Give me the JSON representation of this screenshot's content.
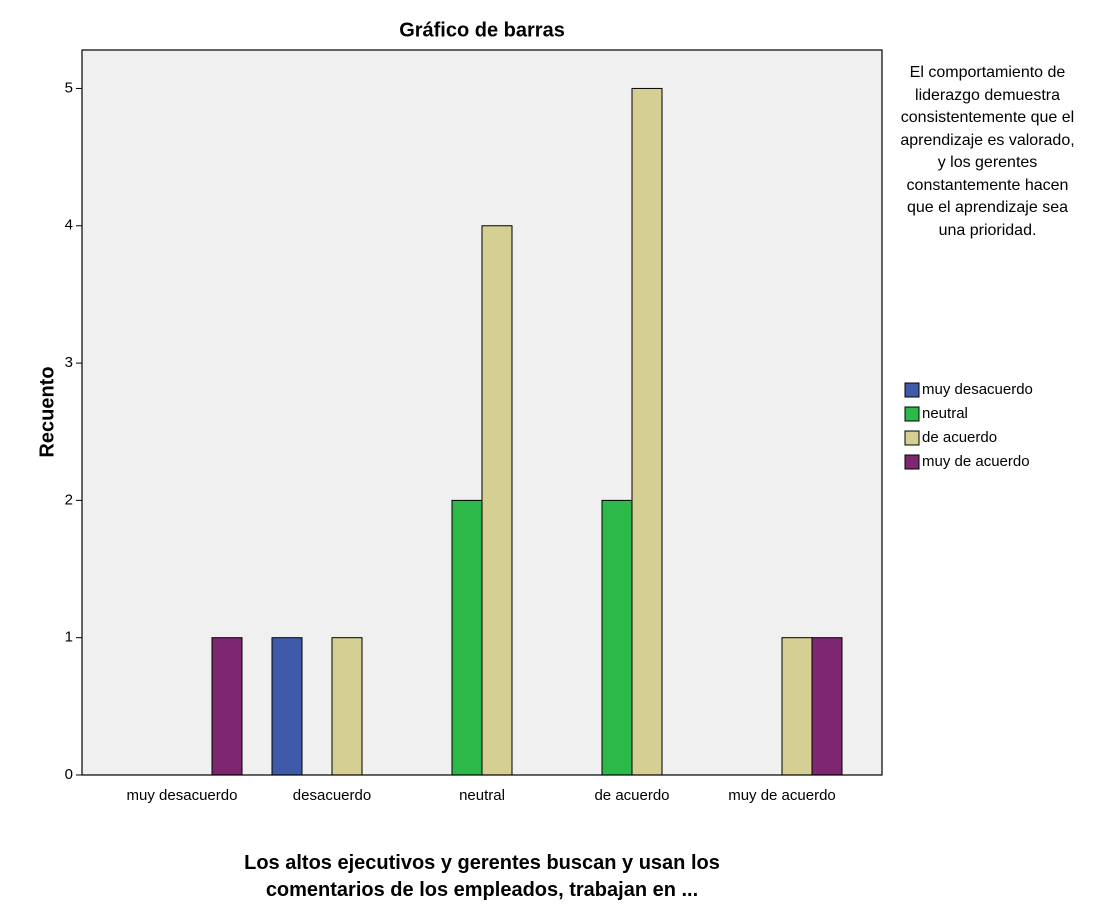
{
  "chart_data": {
    "type": "bar",
    "title": "Gráfico de barras",
    "x_label": "Los altos ejecutivos y gerentes buscan y usan los comentarios de los empleados, trabajan en ...",
    "y_label": "Recuento",
    "legend_title": "El comportamiento de liderazgo demuestra consistentemente que el aprendizaje es valorado, y los gerentes constantemente hacen que el aprendizaje sea una prioridad.",
    "categories": [
      "muy desacuerdo",
      "desacuerdo",
      "neutral",
      "de acuerdo",
      "muy de acuerdo"
    ],
    "series": [
      {
        "name": "muy desacuerdo",
        "color": "#3f5aa8",
        "values": [
          null,
          1,
          null,
          null,
          null
        ]
      },
      {
        "name": "neutral",
        "color": "#2db84a",
        "values": [
          null,
          null,
          2,
          2,
          null
        ]
      },
      {
        "name": "de acuerdo",
        "color": "#d5cf94",
        "values": [
          null,
          1,
          4,
          5,
          1
        ]
      },
      {
        "name": "muy de acuerdo",
        "color": "#7c2770",
        "values": [
          1,
          null,
          null,
          null,
          1
        ]
      }
    ],
    "ylim": [
      0,
      5.28
    ],
    "yticks": [
      0,
      1,
      2,
      3,
      4,
      5
    ],
    "grid": false,
    "legend": "right"
  }
}
